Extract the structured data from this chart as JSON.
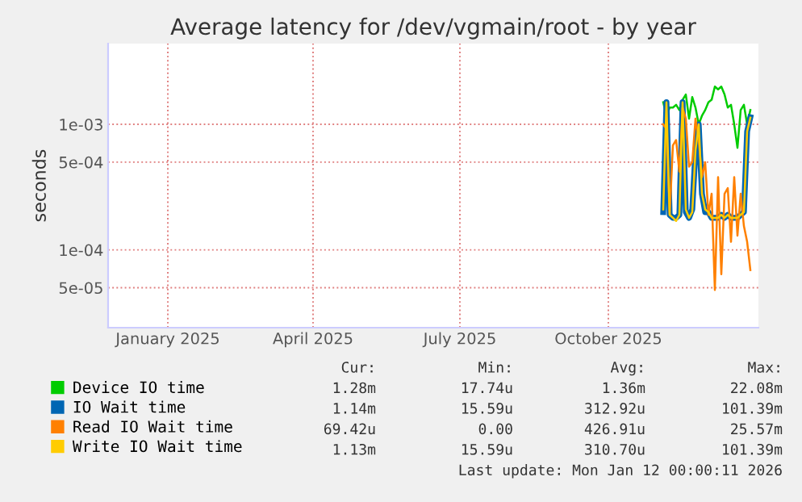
{
  "chart_data": {
    "type": "line",
    "title": "Average latency for /dev/vgmain/root - by year",
    "ylabel": "seconds",
    "log": "y",
    "grid": true,
    "legend": "bottom",
    "line_style": "solid",
    "marker": "none",
    "x": [
      "2025-11-19",
      "2025-11-21",
      "2025-11-23",
      "2025-11-25",
      "2025-11-27",
      "2025-11-29",
      "2025-12-01",
      "2025-12-03",
      "2025-12-05",
      "2025-12-07",
      "2025-12-09",
      "2025-12-11",
      "2025-12-13",
      "2025-12-15",
      "2025-12-17",
      "2025-12-19",
      "2025-12-21",
      "2025-12-23",
      "2025-12-25",
      "2025-12-27",
      "2025-12-29",
      "2025-12-31",
      "2026-01-02",
      "2026-01-04",
      "2026-01-06",
      "2026-01-08",
      "2026-01-10",
      "2026-01-12"
    ],
    "xlim": [
      "2024-12-10",
      "2026-01-17"
    ],
    "xticks": [
      {
        "value": "2025-01-16",
        "label": "January 2025"
      },
      {
        "value": "2025-04-16",
        "label": "April 2025"
      },
      {
        "value": "2025-07-16",
        "label": "July 2025"
      },
      {
        "value": "2025-10-16",
        "label": "October 2025"
      }
    ],
    "ylim": [
      2.4e-05,
      0.0044
    ],
    "yticks": [
      {
        "value": 5e-05,
        "label": "5e-05"
      },
      {
        "value": 0.0001,
        "label": "1e-04"
      },
      {
        "value": 0.0005,
        "label": "5e-04"
      },
      {
        "value": 0.001,
        "label": "1e-03"
      }
    ],
    "series": [
      {
        "name": "Device IO time",
        "color": "#00cc00",
        "values": [
          0.0015,
          0.00117,
          0.00136,
          0.00136,
          0.00143,
          0.0013,
          0.00157,
          0.00173,
          0.00111,
          0.00165,
          0.00136,
          0.001,
          0.00117,
          0.0013,
          0.0015,
          0.00157,
          0.002,
          0.0019,
          0.002,
          0.00173,
          0.00136,
          0.00143,
          0.001,
          0.00065,
          0.0013,
          0.00143,
          0.001,
          0.0013
        ]
      },
      {
        "name": "IO Wait time",
        "color": "#0066b3",
        "values": [
          0.0002,
          0.0015,
          0.00019,
          0.00018,
          0.00018,
          0.00019,
          0.0015,
          0.0002,
          0.00018,
          0.00021,
          0.00062,
          0.001,
          0.00028,
          0.0002,
          0.0002,
          0.00018,
          0.00018,
          0.00018,
          0.00019,
          0.00018,
          0.00019,
          0.00018,
          0.00018,
          0.00018,
          0.00019,
          0.0002,
          0.00088,
          0.00114
        ]
      },
      {
        "name": "Read IO Wait time",
        "color": "#ff8000",
        "values": [
          0.001,
          0.00092,
          0.00019,
          0.00068,
          0.00075,
          0.00042,
          0.00136,
          0.00111,
          0.00046,
          0.0005,
          0.00111,
          0.00075,
          0.00038,
          0.0005,
          0.00019,
          0.00028,
          4.8e-05,
          0.00038,
          6.4e-05,
          0.00028,
          0.00031,
          0.000116,
          0.00038,
          0.00013,
          0.00028,
          0.000155,
          0.000116,
          6.9e-05
        ]
      },
      {
        "name": "Write IO Wait time",
        "color": "#ffcc00",
        "values": [
          0.00021,
          0.0015,
          0.00019,
          0.00018,
          0.00017,
          0.00019,
          0.0015,
          0.00021,
          0.00018,
          0.0002,
          0.00062,
          0.001,
          0.00028,
          0.00021,
          0.0002,
          0.00018,
          0.00018,
          0.00018,
          0.00019,
          0.00018,
          0.00019,
          0.00018,
          0.00018,
          0.00018,
          0.00019,
          0.0002,
          0.00088,
          0.00113
        ]
      }
    ],
    "annotations": [
      "Cur:",
      "Min:",
      "Avg:",
      "Max:",
      "1.28m",
      "17.74u",
      "1.36m",
      "22.08m",
      "1.14m",
      "15.59u",
      "312.92u",
      "101.39m",
      "69.42u",
      "0.00",
      "426.91u",
      "25.57m",
      "1.13m",
      "15.59u",
      "310.70u",
      "101.39m",
      "Last update: Mon Jan 12 00:00:11 2026"
    ]
  }
}
